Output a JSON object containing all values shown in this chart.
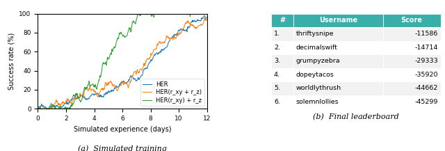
{
  "caption_a": "(a)  Simulated training",
  "caption_b": "(b)  Final leaderboard",
  "xlabel": "Simulated experience (days)",
  "ylabel": "Success rate (%)",
  "xlim": [
    0,
    12
  ],
  "ylim": [
    0,
    100
  ],
  "xticks": [
    0,
    2,
    4,
    6,
    8,
    10,
    12
  ],
  "yticks": [
    0,
    20,
    40,
    60,
    80,
    100
  ],
  "legend_labels": [
    "HER",
    "HER(r_xy + r_z)",
    "HER(r_xy) + r_z"
  ],
  "line_colors": [
    "#1f77b4",
    "#ff7f0e",
    "#2ca02c"
  ],
  "table_header": [
    "#",
    "Username",
    "Score"
  ],
  "table_header_bg": "#3aafa9",
  "table_header_color": "#ffffff",
  "table_row_bg_odd": "#f2f2f2",
  "table_row_bg_even": "#ffffff",
  "table_data": [
    [
      "1.",
      "thriftysnipe",
      "-11586"
    ],
    [
      "2.",
      "decimalswift",
      "-14714"
    ],
    [
      "3.",
      "grumpyzebra",
      "-29333"
    ],
    [
      "4.",
      "dopeytacos",
      "-35920"
    ],
    [
      "5.",
      "worldlythrush",
      "-44662"
    ],
    [
      "6.",
      "solemnlollies",
      "-45299"
    ]
  ],
  "seed": 17,
  "n_points": 500
}
